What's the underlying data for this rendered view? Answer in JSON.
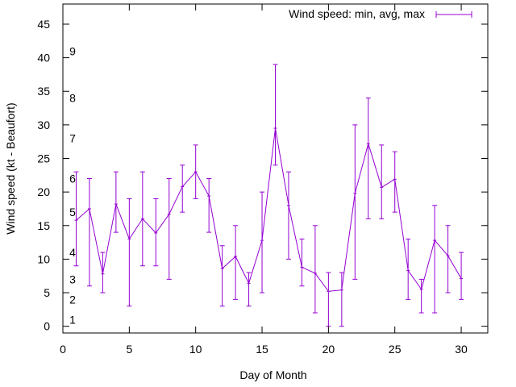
{
  "chart_data": {
    "type": "line",
    "title": "",
    "xlabel": "Day of Month",
    "ylabel": "Wind speed (kt - Beaufort)",
    "xlim": [
      0,
      32
    ],
    "ylim": [
      -1,
      48
    ],
    "x_ticks": [
      "0",
      "5",
      "10",
      "15",
      "20",
      "25",
      "30"
    ],
    "y_ticks": [
      "0",
      "5",
      "10",
      "15",
      "20",
      "25",
      "30",
      "35",
      "40",
      "45"
    ],
    "beaufort_labels": [
      {
        "text": "1",
        "y": 1
      },
      {
        "text": "2",
        "y": 4
      },
      {
        "text": "3",
        "y": 7
      },
      {
        "text": "4",
        "y": 11
      },
      {
        "text": "5",
        "y": 17
      },
      {
        "text": "6",
        "y": 22
      },
      {
        "text": "7",
        "y": 28
      },
      {
        "text": "8",
        "y": 34
      },
      {
        "text": "9",
        "y": 41
      }
    ],
    "grid": false,
    "legend_position": "top-right",
    "series": [
      {
        "name": "Wind speed: min, avg, max",
        "color": "#9400d3",
        "x": [
          1,
          2,
          3,
          4,
          5,
          6,
          7,
          8,
          9,
          10,
          11,
          12,
          13,
          14,
          15,
          16,
          17,
          18,
          19,
          20,
          21,
          22,
          23,
          24,
          25,
          26,
          27,
          28,
          29,
          30
        ],
        "avg": [
          15.8,
          17.5,
          7.8,
          18.2,
          13.0,
          16.0,
          13.9,
          16.7,
          20.8,
          23.0,
          19.4,
          8.6,
          10.4,
          6.4,
          12.8,
          29.5,
          18.0,
          8.8,
          7.9,
          5.2,
          5.4,
          19.8,
          27.2,
          20.7,
          21.9,
          8.3,
          5.5,
          12.8,
          10.5,
          7.1
        ],
        "min": [
          9,
          6,
          5,
          14,
          3,
          9,
          9,
          7,
          17,
          19,
          14,
          3,
          4,
          3,
          5,
          24,
          10,
          6,
          2,
          0,
          0,
          7,
          16,
          16,
          17,
          4,
          2,
          2,
          5,
          4
        ],
        "max": [
          23,
          22,
          11,
          23,
          19,
          23,
          19,
          22,
          24,
          27,
          22,
          12,
          15,
          8,
          20,
          39,
          23,
          13,
          15,
          8,
          8,
          30,
          34,
          27,
          26,
          13,
          7,
          18,
          15,
          11
        ]
      }
    ]
  }
}
